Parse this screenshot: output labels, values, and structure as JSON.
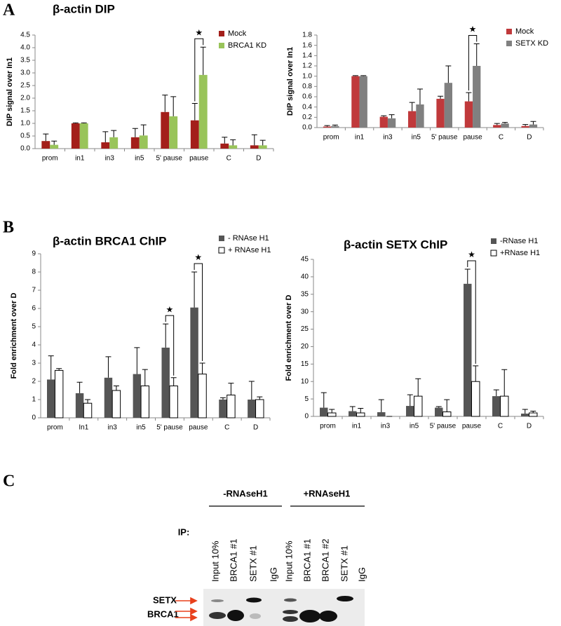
{
  "panel_labels": [
    "A",
    "B",
    "C"
  ],
  "chart_data": [
    {
      "type": "bar",
      "title": "β-actin DIP",
      "y_label": "DIP signal over In1",
      "categories": [
        "prom",
        "in1",
        "in3",
        "in5",
        "5' pause",
        "pause",
        "C",
        "D"
      ],
      "series": [
        {
          "name": "Mock",
          "color": "#a31f1a",
          "values": [
            0.3,
            1.0,
            0.25,
            0.45,
            1.45,
            1.12,
            0.2,
            0.13
          ],
          "errors": [
            0.28,
            0.02,
            0.42,
            0.35,
            0.67,
            0.67,
            0.25,
            0.42
          ]
        },
        {
          "name": "BRCA1 KD",
          "color": "#99c45a",
          "values": [
            0.15,
            1.0,
            0.45,
            0.52,
            1.28,
            2.92,
            0.13,
            0.13
          ],
          "errors": [
            0.15,
            0.02,
            0.27,
            0.42,
            0.78,
            1.1,
            0.22,
            0.2
          ]
        }
      ],
      "ylim": [
        0,
        4.5
      ],
      "yticks": [
        {
          "value": 0,
          "label": "0.0"
        },
        0.5,
        {
          "value": 1,
          "label": "1.0"
        },
        1.5,
        {
          "value": 2,
          "label": "2.0"
        },
        2.5,
        {
          "value": 3,
          "label": "3.0"
        },
        3.5,
        {
          "value": 4,
          "label": "4.0"
        },
        4.5
      ],
      "annotations": [
        {
          "text": "★",
          "at": "pause"
        }
      ]
    },
    {
      "type": "bar",
      "y_label": "DIP signal over In1",
      "categories": [
        "prom",
        "in1",
        "in3",
        "in5",
        "5' pause",
        "pause",
        "C",
        "D"
      ],
      "series": [
        {
          "name": "Mock",
          "color": "#c0393b",
          "values": [
            0.02,
            1.0,
            0.21,
            0.32,
            0.56,
            0.51,
            0.05,
            0.03
          ],
          "errors": [
            0.02,
            0.01,
            0.02,
            0.17,
            0.05,
            0.17,
            0.03,
            0.03
          ]
        },
        {
          "name": "SETX KD",
          "color": "#808080",
          "values": [
            0.03,
            1.0,
            0.18,
            0.45,
            0.87,
            1.2,
            0.08,
            0.06
          ],
          "errors": [
            0.02,
            0.01,
            0.07,
            0.3,
            0.33,
            0.43,
            0.02,
            0.06
          ]
        }
      ],
      "ylim": [
        0,
        1.8
      ],
      "yticks": [
        {
          "value": 0,
          "label": "0.0"
        },
        0.2,
        0.4,
        0.6,
        0.8,
        {
          "value": 1,
          "label": "1.0"
        },
        1.2,
        1.4,
        1.6,
        1.8
      ],
      "annotations": [
        {
          "text": "★",
          "at": "pause"
        }
      ]
    },
    {
      "type": "bar",
      "title": "β-actin BRCA1 ChIP",
      "y_label": "Fold enrichment over D",
      "categories": [
        "prom",
        "In1",
        "in3",
        "in5",
        "5' pause",
        "pause",
        "C",
        "D"
      ],
      "series": [
        {
          "name": "- RNAse H1",
          "color": "#555555",
          "values": [
            2.1,
            1.35,
            2.2,
            2.4,
            3.85,
            6.05,
            1.0,
            1.0
          ],
          "errors": [
            1.3,
            0.6,
            1.15,
            1.45,
            1.3,
            1.95,
            0.1,
            1.0
          ]
        },
        {
          "name": "+ RNAse H1",
          "color": "#ffffff",
          "values": [
            2.6,
            0.8,
            1.5,
            1.75,
            1.75,
            2.4,
            1.25,
            1.0
          ],
          "errors": [
            0.1,
            0.2,
            0.25,
            0.9,
            0.45,
            0.6,
            0.65,
            0.15
          ]
        }
      ],
      "ylim": [
        0,
        9
      ],
      "yticks": [
        0,
        1,
        2,
        3,
        4,
        5,
        6,
        7,
        8,
        9
      ],
      "annotations": [
        {
          "text": "★",
          "at": "5' pause"
        },
        {
          "text": "★",
          "at": "pause"
        }
      ]
    },
    {
      "type": "bar",
      "title": "β-actin SETX ChIP",
      "y_label": "Fold enrichment over D",
      "categories": [
        "prom",
        "in1",
        "in3",
        "in5",
        "5' pause",
        "pause",
        "C",
        "D"
      ],
      "series": [
        {
          "name": "-RNase H1",
          "color": "#555555",
          "values": [
            2.5,
            1.5,
            1.2,
            3,
            2.5,
            38,
            5.8,
            0.8
          ],
          "errors": [
            4.3,
            1.3,
            3.6,
            3.2,
            0.3,
            4.2,
            1.8,
            1.2
          ]
        },
        {
          "name": "+RNase H1",
          "color": "#ffffff",
          "values": [
            1,
            1,
            0,
            5.8,
            1.3,
            10,
            5.8,
            1
          ],
          "errors": [
            1,
            1.3,
            0,
            5,
            3.5,
            4.5,
            7.6,
            0.5
          ]
        }
      ],
      "ylim": [
        0,
        45
      ],
      "yticks": [
        0,
        5,
        10,
        15,
        20,
        25,
        30,
        35,
        40,
        45
      ],
      "annotations": [
        {
          "text": "★",
          "at": "pause"
        }
      ]
    }
  ],
  "blot": {
    "groups": [
      "-RNAseH1",
      "+RNAseH1"
    ],
    "ip_label": "IP:",
    "lanes": [
      "Input 10%",
      "BRCA1 #1",
      "SETX #1",
      "IgG",
      "Input 10%",
      "BRCA1 #1",
      "BRCA1 #2",
      "SETX #1",
      "IgG"
    ],
    "bands": [
      "SETX",
      "BRCA1"
    ]
  }
}
